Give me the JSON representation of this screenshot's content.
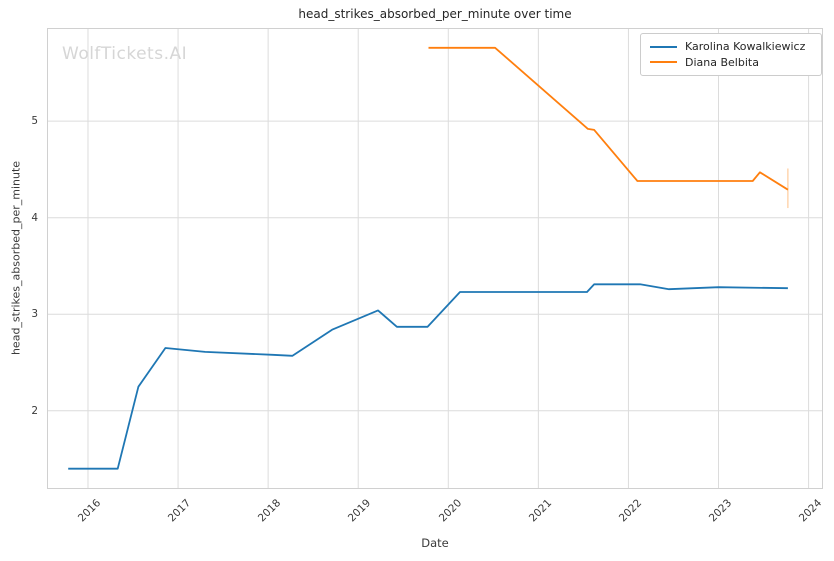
{
  "watermark": "WolfTickets.AI",
  "colors": {
    "grid": "#dcdcdc",
    "spine": "#d0d0d0",
    "text": "#262626",
    "tick_text": "#3a3a3a",
    "watermark": "#d6d6d6",
    "series_blue": "#1f77b4",
    "series_orange": "#ff7f0e"
  },
  "chart_data": {
    "type": "line",
    "title": "head_strikes_absorbed_per_minute over time",
    "xlabel": "Date",
    "ylabel": "head_strikes_absorbed_per_minute",
    "x_ticks": [
      2016,
      2017,
      2018,
      2019,
      2020,
      2021,
      2022,
      2023,
      2024
    ],
    "y_ticks": [
      2,
      3,
      4,
      5
    ],
    "xlim": [
      2015.545,
      2024.16
    ],
    "ylim": [
      1.19,
      5.965
    ],
    "grid": true,
    "legend_position": "upper right",
    "series": [
      {
        "name": "Karolina Kowalkiewicz",
        "color": "#1f77b4",
        "x": [
          2015.78,
          2016.33,
          2016.56,
          2016.86,
          2017.3,
          2018.05,
          2018.27,
          2018.71,
          2019.22,
          2019.43,
          2019.77,
          2020.13,
          2021.54,
          2021.62,
          2022.13,
          2022.45,
          2023.0,
          2023.77
        ],
        "y": [
          1.4,
          1.4,
          2.25,
          2.65,
          2.61,
          2.58,
          2.57,
          2.84,
          3.04,
          2.87,
          2.87,
          3.23,
          3.23,
          3.31,
          3.31,
          3.26,
          3.28,
          3.27
        ]
      },
      {
        "name": "Diana Belbita",
        "color": "#ff7f0e",
        "x": [
          2019.78,
          2020.52,
          2021.55,
          2021.62,
          2022.1,
          2023.38,
          2023.46,
          2023.77
        ],
        "y": [
          5.76,
          5.76,
          4.92,
          4.91,
          4.38,
          4.38,
          4.47,
          4.29
        ],
        "error_bar_last": {
          "x": 2023.77,
          "y_low": 4.1,
          "y_high": 4.51
        }
      }
    ]
  }
}
